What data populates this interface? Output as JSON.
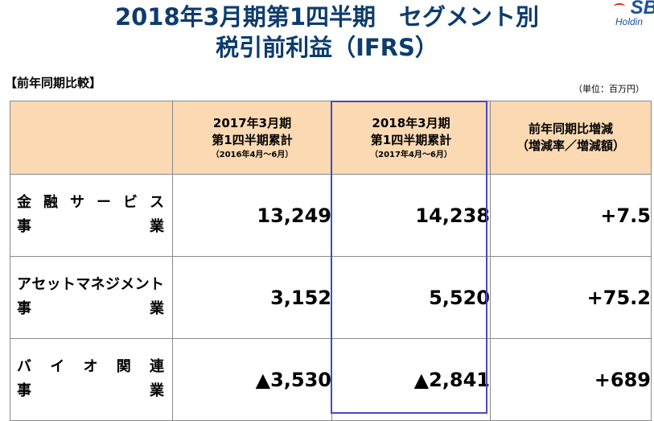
{
  "title_line1": "2018年3月期第1四半期　セグメント別",
  "title_line2": "税引前利益（IFRS）",
  "logo": {
    "mark": "SB",
    "subtext": "Holdin"
  },
  "section_label": "【前年同期比較】",
  "unit_note": "（単位：百万円）",
  "headers": {
    "col1": {
      "line1": "2017年3月期",
      "line2": "第1四半期累計",
      "line3": "（2016年4月～6月）"
    },
    "col2": {
      "line1": "2018年3月期",
      "line2": "第1四半期累計",
      "line3": "（2017年4月～6月）"
    },
    "col3": {
      "line1": "前年同期比増減",
      "line2": "（増減率／増減額）"
    }
  },
  "rows": [
    {
      "name_top": [
        "金",
        "融",
        "サ",
        "ー",
        "ビ",
        "ス"
      ],
      "name_bottom": [
        "事",
        "業"
      ],
      "prev": "13,249",
      "curr": "14,238",
      "change": "+7.5"
    },
    {
      "name_top": [
        "ア",
        "セ",
        "ッ",
        "ト",
        "マ",
        "ネ",
        "ジ",
        "メ",
        "ン",
        "ト"
      ],
      "name_bottom": [
        "事",
        "業"
      ],
      "prev": "3,152",
      "curr": "5,520",
      "change": "+75.2"
    },
    {
      "name_top": [
        "バ",
        "イ",
        "オ",
        "関",
        "連"
      ],
      "name_bottom": [
        "事",
        "業"
      ],
      "prev": "▲3,530",
      "curr": "▲2,841",
      "change": "+689"
    }
  ],
  "colors": {
    "header_bg": "#fad9b3",
    "title": "#0d3c6e",
    "highlight_border": "#4747c8"
  }
}
